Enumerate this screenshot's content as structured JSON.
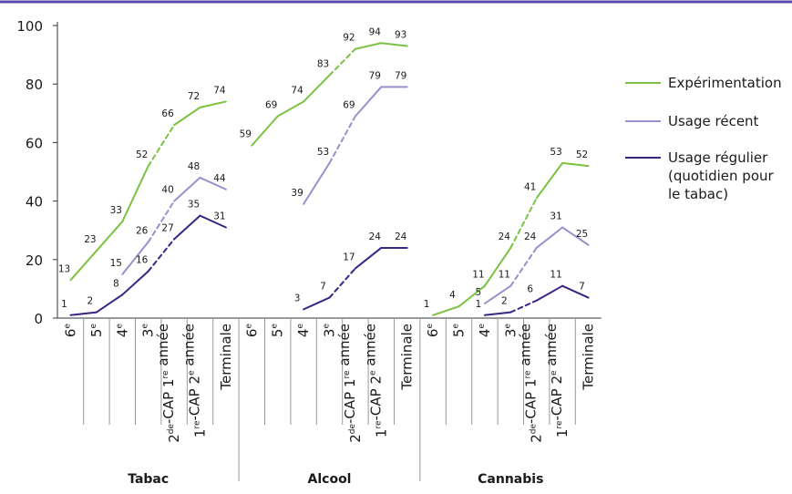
{
  "chart_data": {
    "type": "line",
    "yticks": [
      0,
      20,
      40,
      60,
      80,
      100
    ],
    "ylim": [
      0,
      100
    ],
    "grid": false,
    "legend_position": "right",
    "colors": {
      "top_rule": "#5b4bb0",
      "axis": "#333333",
      "separator": "#9a9a9a"
    },
    "groups": [
      {
        "name": "Tabac",
        "categories": [
          "6e",
          "5e",
          "4e",
          "3e",
          "2de-CAP 1re année",
          "1re-CAP 2e année",
          "Terminale"
        ],
        "series": [
          {
            "name": "Expérimentation",
            "values": [
              13,
              23,
              33,
              52,
              66,
              72,
              74
            ]
          },
          {
            "name": "Usage récent",
            "values": [
              null,
              null,
              15,
              26,
              40,
              48,
              44
            ]
          },
          {
            "name": "Usage régulier (quotidien pour le tabac)",
            "values": [
              1,
              2,
              8,
              16,
              27,
              35,
              31
            ]
          }
        ]
      },
      {
        "name": "Alcool",
        "categories": [
          "6e",
          "5e",
          "4e",
          "3e",
          "2de-CAP 1re année",
          "1re-CAP 2e année",
          "Terminale"
        ],
        "series": [
          {
            "name": "Expérimentation",
            "values": [
              59,
              69,
              74,
              83,
              92,
              94,
              93
            ]
          },
          {
            "name": "Usage récent",
            "values": [
              null,
              null,
              39,
              53,
              69,
              79,
              79
            ]
          },
          {
            "name": "Usage régulier (quotidien pour le tabac)",
            "values": [
              null,
              null,
              3,
              7,
              17,
              24,
              24
            ]
          }
        ]
      },
      {
        "name": "Cannabis",
        "categories": [
          "6e",
          "5e",
          "4e",
          "3e",
          "2de-CAP 1re année",
          "1re-CAP 2e année",
          "Terminale"
        ],
        "series": [
          {
            "name": "Expérimentation",
            "values": [
              1,
              4,
              11,
              24,
              41,
              53,
              52
            ]
          },
          {
            "name": "Usage récent",
            "values": [
              null,
              null,
              5,
              11,
              24,
              31,
              25
            ]
          },
          {
            "name": "Usage régulier (quotidien pour le tabac)",
            "values": [
              null,
              null,
              1,
              2,
              6,
              11,
              7
            ]
          }
        ]
      }
    ],
    "legend": [
      {
        "lines": [
          "Expérimentation"
        ],
        "color": "#7cc242"
      },
      {
        "lines": [
          "Usage récent"
        ],
        "color": "#9b8fcc"
      },
      {
        "lines": [
          "Usage régulier",
          "(quotidien pour",
          "le tabac)"
        ],
        "color": "#3b2483"
      }
    ],
    "dashed_segment": "3e to 2de-CAP 1re année"
  }
}
